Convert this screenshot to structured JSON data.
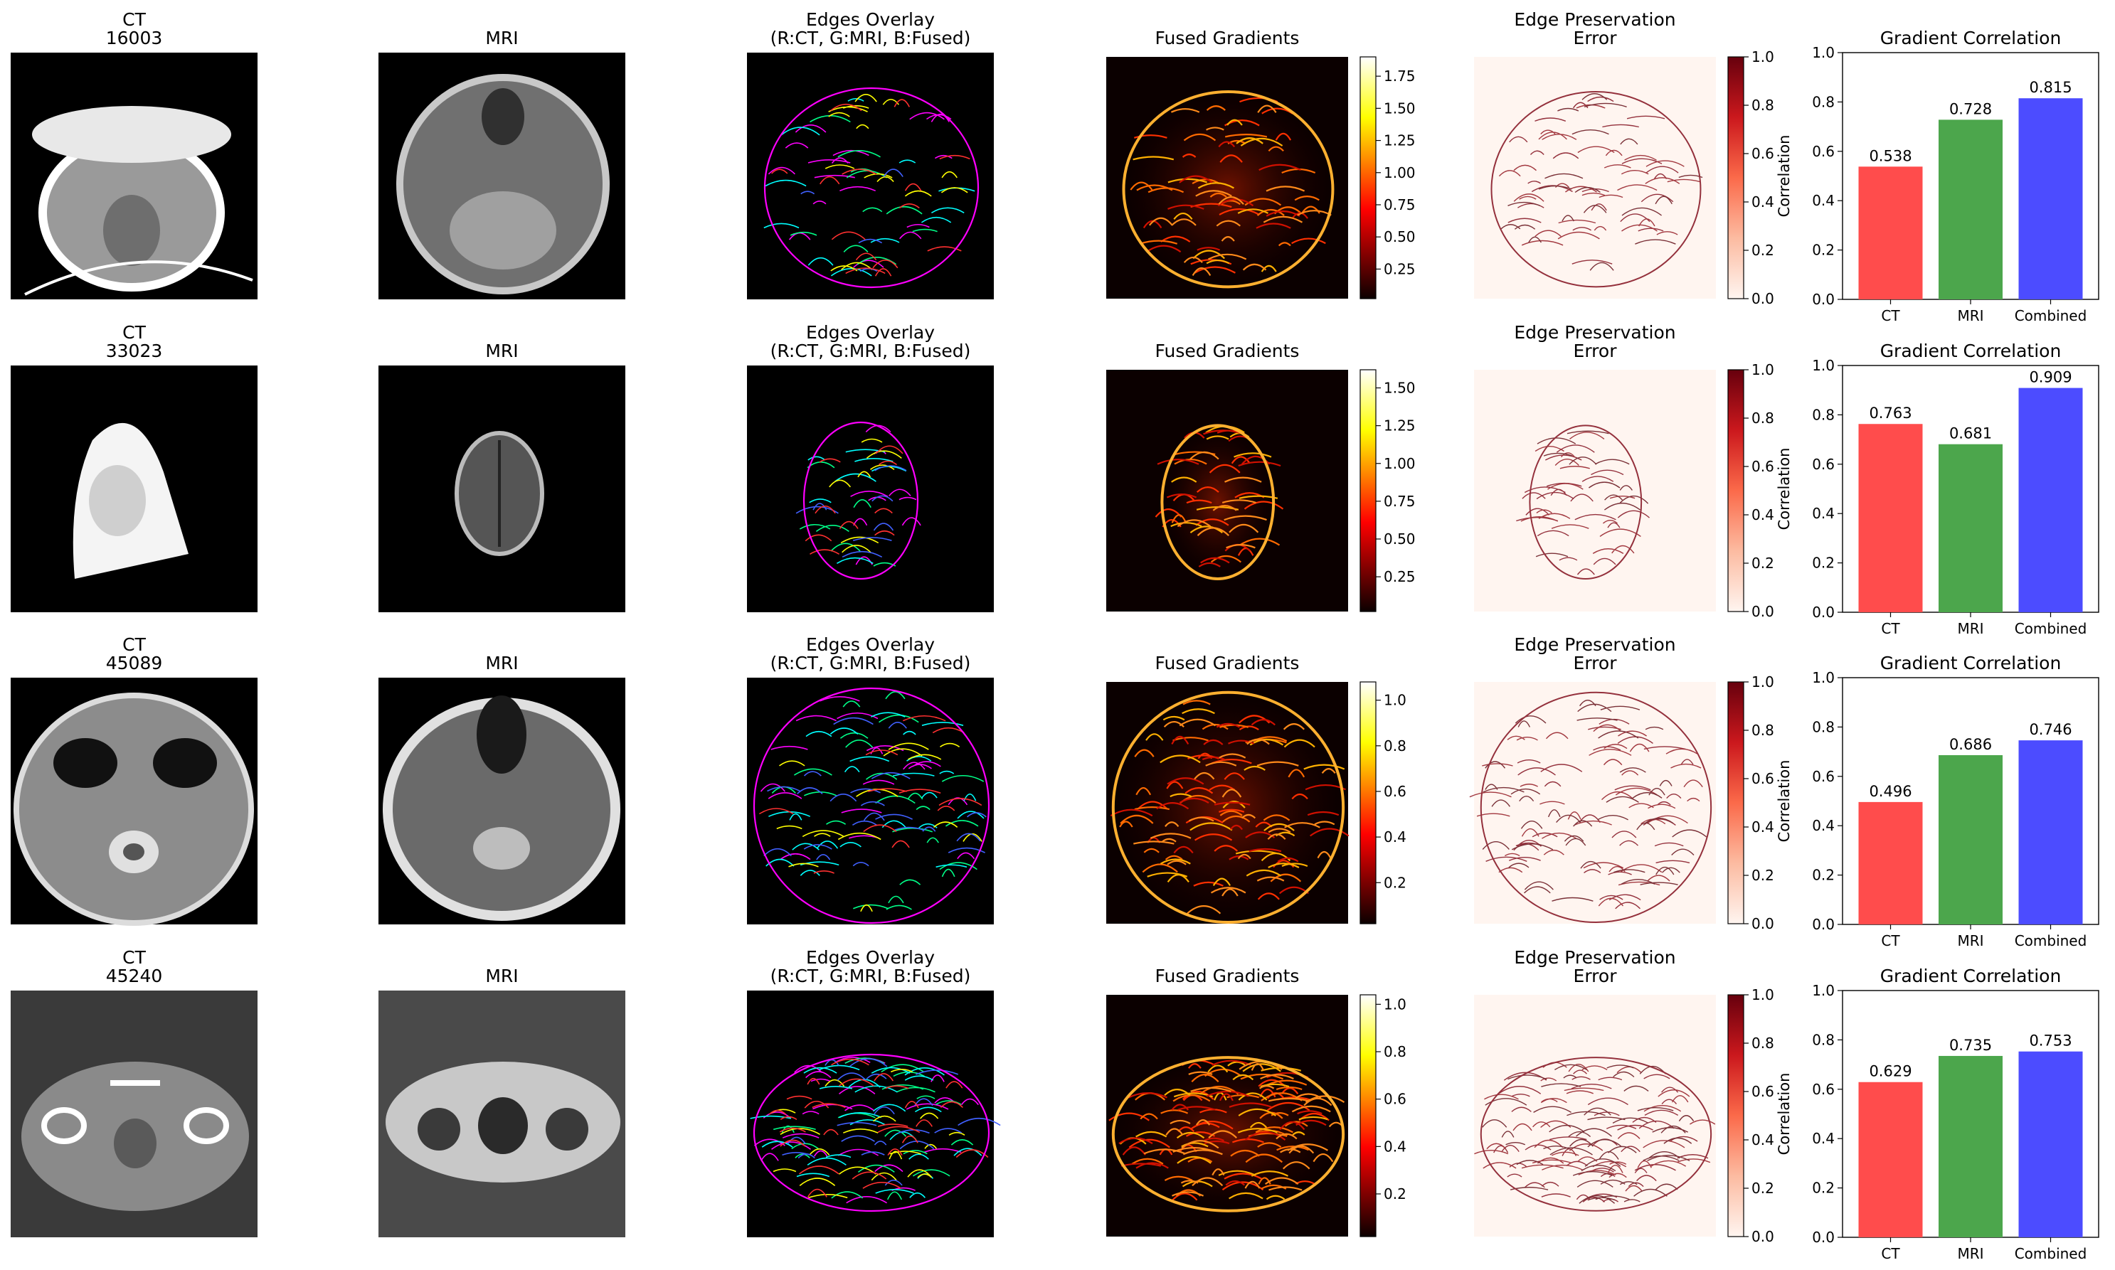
{
  "colors": {
    "ct_bar": "#ff4c4c",
    "mri_bar": "#4ca64c",
    "combined_bar": "#4c4cff"
  },
  "rows": [
    {
      "ct_title": "CT",
      "ct_id": "16003",
      "mri_title": "MRI",
      "edges_title": "Edges Overlay",
      "edges_subtitle": "(R:CT, G:MRI, B:Fused)",
      "grad_title": "Fused Gradients",
      "err_title": "Edge Preservation",
      "err_subtitle": "Error",
      "corr_title": "Gradient Correlation",
      "grad_cbar": {
        "min": 0.02,
        "max": 1.9,
        "ticks": [
          "0.25",
          "0.50",
          "0.75",
          "1.00",
          "1.25",
          "1.50",
          "1.75"
        ]
      }
    },
    {
      "ct_title": "CT",
      "ct_id": "33023",
      "mri_title": "MRI",
      "edges_title": "Edges Overlay",
      "edges_subtitle": "(R:CT, G:MRI, B:Fused)",
      "grad_title": "Fused Gradients",
      "err_title": "Edge Preservation",
      "err_subtitle": "Error",
      "corr_title": "Gradient Correlation",
      "grad_cbar": {
        "min": 0.02,
        "max": 1.62,
        "ticks": [
          "0.25",
          "0.50",
          "0.75",
          "1.00",
          "1.25",
          "1.50"
        ]
      }
    },
    {
      "ct_title": "CT",
      "ct_id": "45089",
      "mri_title": "MRI",
      "edges_title": "Edges Overlay",
      "edges_subtitle": "(R:CT, G:MRI, B:Fused)",
      "grad_title": "Fused Gradients",
      "err_title": "Edge Preservation",
      "err_subtitle": "Error",
      "corr_title": "Gradient Correlation",
      "grad_cbar": {
        "min": 0.02,
        "max": 1.08,
        "ticks": [
          "0.2",
          "0.4",
          "0.6",
          "0.8",
          "1.0"
        ]
      }
    },
    {
      "ct_title": "CT",
      "ct_id": "45240",
      "mri_title": "MRI",
      "edges_title": "Edges Overlay",
      "edges_subtitle": "(R:CT, G:MRI, B:Fused)",
      "grad_title": "Fused Gradients",
      "err_title": "Edge Preservation",
      "err_subtitle": "Error",
      "corr_title": "Gradient Correlation",
      "grad_cbar": {
        "min": 0.02,
        "max": 1.04,
        "ticks": [
          "0.2",
          "0.4",
          "0.6",
          "0.8",
          "1.0"
        ]
      }
    }
  ],
  "err_cbar": {
    "min": 0,
    "max": 1,
    "ticks": [
      "0.0",
      "0.2",
      "0.4",
      "0.6",
      "0.8",
      "1.0"
    ]
  },
  "chart_data": [
    {
      "type": "bar",
      "title": "Gradient Correlation",
      "ylabel": "Correlation",
      "ylim": [
        0,
        1
      ],
      "yticks": [
        "0.0",
        "0.2",
        "0.4",
        "0.6",
        "0.8",
        "1.0"
      ],
      "categories": [
        "CT",
        "MRI",
        "Combined"
      ],
      "values": [
        0.538,
        0.728,
        0.815
      ],
      "labels": [
        "0.538",
        "0.728",
        "0.815"
      ]
    },
    {
      "type": "bar",
      "title": "Gradient Correlation",
      "ylabel": "Correlation",
      "ylim": [
        0,
        1
      ],
      "yticks": [
        "0.0",
        "0.2",
        "0.4",
        "0.6",
        "0.8",
        "1.0"
      ],
      "categories": [
        "CT",
        "MRI",
        "Combined"
      ],
      "values": [
        0.763,
        0.681,
        0.909
      ],
      "labels": [
        "0.763",
        "0.681",
        "0.909"
      ]
    },
    {
      "type": "bar",
      "title": "Gradient Correlation",
      "ylabel": "Correlation",
      "ylim": [
        0,
        1
      ],
      "yticks": [
        "0.0",
        "0.2",
        "0.4",
        "0.6",
        "0.8",
        "1.0"
      ],
      "categories": [
        "CT",
        "MRI",
        "Combined"
      ],
      "values": [
        0.496,
        0.686,
        0.746
      ],
      "labels": [
        "0.496",
        "0.686",
        "0.746"
      ]
    },
    {
      "type": "bar",
      "title": "Gradient Correlation",
      "ylabel": "Correlation",
      "ylim": [
        0,
        1
      ],
      "yticks": [
        "0.0",
        "0.2",
        "0.4",
        "0.6",
        "0.8",
        "1.0"
      ],
      "categories": [
        "CT",
        "MRI",
        "Combined"
      ],
      "values": [
        0.629,
        0.735,
        0.753
      ],
      "labels": [
        "0.629",
        "0.735",
        "0.753"
      ]
    }
  ]
}
